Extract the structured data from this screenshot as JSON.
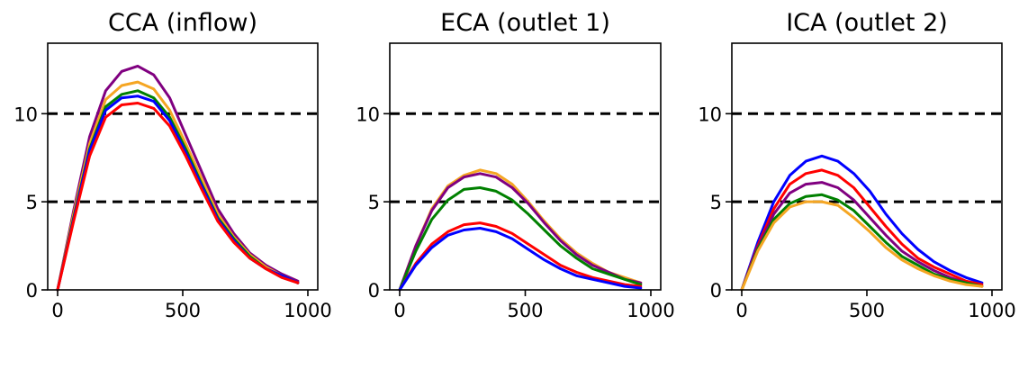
{
  "chart_data": [
    {
      "type": "line",
      "title": "CCA (inflow)",
      "xlim": [
        0,
        1000
      ],
      "ylim": [
        0,
        14
      ],
      "xticks": [
        0,
        500,
        1000
      ],
      "yticks": [
        0,
        5,
        10
      ],
      "grid": false,
      "reference_lines": [
        5,
        10
      ],
      "x": [
        0,
        64,
        128,
        192,
        256,
        320,
        384,
        448,
        512,
        576,
        640,
        704,
        768,
        832,
        896,
        960
      ],
      "series": [
        {
          "color": "#800080",
          "values": [
            0,
            4.5,
            8.7,
            11.3,
            12.4,
            12.7,
            12.2,
            10.9,
            8.8,
            6.7,
            4.6,
            3.2,
            2.1,
            1.4,
            0.9,
            0.5
          ]
        },
        {
          "color": "#f5a623",
          "values": [
            0,
            4.3,
            8.3,
            10.8,
            11.6,
            11.8,
            11.4,
            10.2,
            8.3,
            6.3,
            4.3,
            3.0,
            2.0,
            1.3,
            0.8,
            0.4
          ]
        },
        {
          "color": "#008000",
          "values": [
            0,
            4.1,
            8.0,
            10.4,
            11.1,
            11.3,
            10.9,
            9.8,
            8.0,
            6.0,
            4.1,
            2.9,
            1.9,
            1.2,
            0.8,
            0.4
          ]
        },
        {
          "color": "#0000ff",
          "values": [
            0,
            4.0,
            7.9,
            10.2,
            10.9,
            11.0,
            10.7,
            9.6,
            7.8,
            5.9,
            4.0,
            2.8,
            1.8,
            1.2,
            0.8,
            0.4
          ]
        },
        {
          "color": "#ff0000",
          "values": [
            0,
            3.9,
            7.6,
            9.8,
            10.5,
            10.6,
            10.3,
            9.3,
            7.6,
            5.7,
            3.9,
            2.7,
            1.8,
            1.2,
            0.7,
            0.4
          ]
        }
      ]
    },
    {
      "type": "line",
      "title": "ECA (outlet 1)",
      "xlim": [
        0,
        1000
      ],
      "ylim": [
        0,
        14
      ],
      "xticks": [
        0,
        500,
        1000
      ],
      "yticks": [
        0,
        5,
        10
      ],
      "grid": false,
      "reference_lines": [
        5,
        10
      ],
      "x": [
        0,
        64,
        128,
        192,
        256,
        320,
        384,
        448,
        512,
        576,
        640,
        704,
        768,
        832,
        896,
        960
      ],
      "series": [
        {
          "color": "#f5a623",
          "values": [
            0,
            2.5,
            4.6,
            5.9,
            6.5,
            6.8,
            6.6,
            6.0,
            5.0,
            3.9,
            2.9,
            2.1,
            1.5,
            1.0,
            0.7,
            0.4
          ]
        },
        {
          "color": "#800080",
          "values": [
            0,
            2.5,
            4.5,
            5.8,
            6.4,
            6.6,
            6.4,
            5.8,
            4.9,
            3.8,
            2.8,
            2.0,
            1.4,
            1.0,
            0.6,
            0.4
          ]
        },
        {
          "color": "#008000",
          "values": [
            0,
            2.2,
            4.0,
            5.1,
            5.7,
            5.8,
            5.6,
            5.1,
            4.3,
            3.4,
            2.5,
            1.8,
            1.2,
            0.9,
            0.6,
            0.3
          ]
        },
        {
          "color": "#ff0000",
          "values": [
            0,
            1.5,
            2.6,
            3.3,
            3.7,
            3.8,
            3.6,
            3.2,
            2.6,
            2.0,
            1.4,
            1.0,
            0.7,
            0.5,
            0.3,
            0.2
          ]
        },
        {
          "color": "#0000ff",
          "values": [
            0,
            1.4,
            2.4,
            3.1,
            3.4,
            3.5,
            3.3,
            2.9,
            2.3,
            1.7,
            1.2,
            0.8,
            0.6,
            0.4,
            0.2,
            0.1
          ]
        }
      ]
    },
    {
      "type": "line",
      "title": "ICA (outlet 2)",
      "xlim": [
        0,
        1000
      ],
      "ylim": [
        0,
        14
      ],
      "xticks": [
        0,
        500,
        1000
      ],
      "yticks": [
        0,
        5,
        10
      ],
      "grid": false,
      "reference_lines": [
        5,
        10
      ],
      "x": [
        0,
        64,
        128,
        192,
        256,
        320,
        384,
        448,
        512,
        576,
        640,
        704,
        768,
        832,
        896,
        960
      ],
      "series": [
        {
          "color": "#0000ff",
          "values": [
            0,
            2.7,
            5.0,
            6.5,
            7.3,
            7.6,
            7.3,
            6.6,
            5.6,
            4.3,
            3.2,
            2.3,
            1.6,
            1.1,
            0.7,
            0.4
          ]
        },
        {
          "color": "#ff0000",
          "values": [
            0,
            2.5,
            4.6,
            6.0,
            6.6,
            6.8,
            6.5,
            5.8,
            4.7,
            3.6,
            2.6,
            1.8,
            1.3,
            0.9,
            0.5,
            0.3
          ]
        },
        {
          "color": "#800080",
          "values": [
            0,
            2.4,
            4.3,
            5.5,
            6.0,
            6.1,
            5.8,
            5.1,
            4.1,
            3.1,
            2.2,
            1.6,
            1.1,
            0.7,
            0.4,
            0.2
          ]
        },
        {
          "color": "#008000",
          "values": [
            0,
            2.3,
            4.0,
            4.9,
            5.3,
            5.4,
            5.1,
            4.5,
            3.6,
            2.7,
            1.9,
            1.4,
            0.9,
            0.6,
            0.4,
            0.2
          ]
        },
        {
          "color": "#f5a623",
          "values": [
            0,
            2.2,
            3.8,
            4.7,
            5.0,
            5.0,
            4.8,
            4.1,
            3.3,
            2.4,
            1.7,
            1.2,
            0.8,
            0.5,
            0.3,
            0.2
          ]
        }
      ]
    }
  ]
}
